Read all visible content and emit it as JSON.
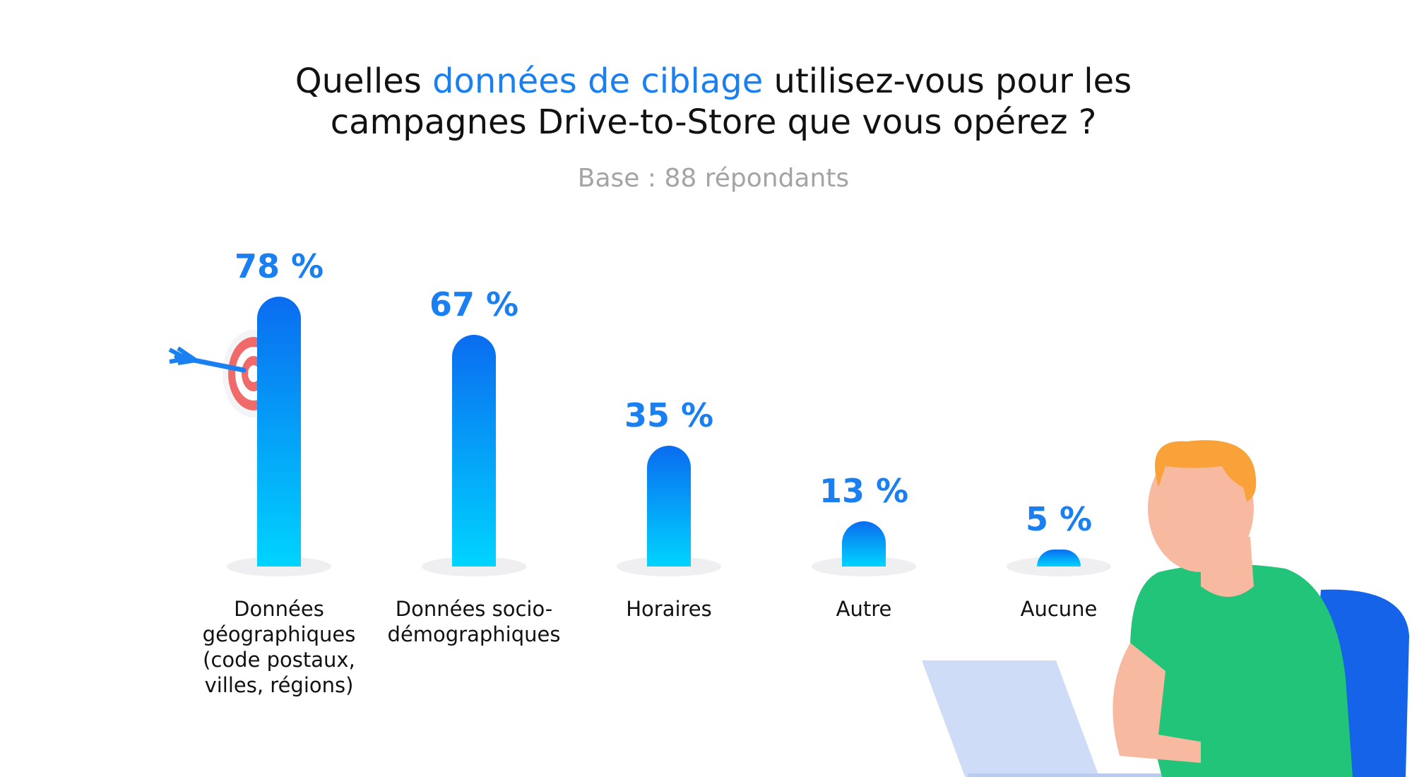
{
  "chart_data": {
    "type": "bar",
    "title": [
      "Quelles",
      "données de ciblage",
      "utilisez-vous pour les",
      "campagnes Drive-to-Store que vous opérez ?"
    ],
    "subtitle": "Base : 88 répondants",
    "categories": [
      "Données géographiques (code postaux, villes, régions)",
      "Données socio-démographiques",
      "Horaires",
      "Autre",
      "Aucune"
    ],
    "values": [
      78,
      67,
      35,
      13,
      5
    ],
    "value_labels": [
      "78 %",
      "67 %",
      "35 %",
      "13 %",
      "5 %"
    ],
    "color": [
      "#0a6cf0",
      "#00d4ff"
    ],
    "accent_color": "#1a7ff0"
  }
}
